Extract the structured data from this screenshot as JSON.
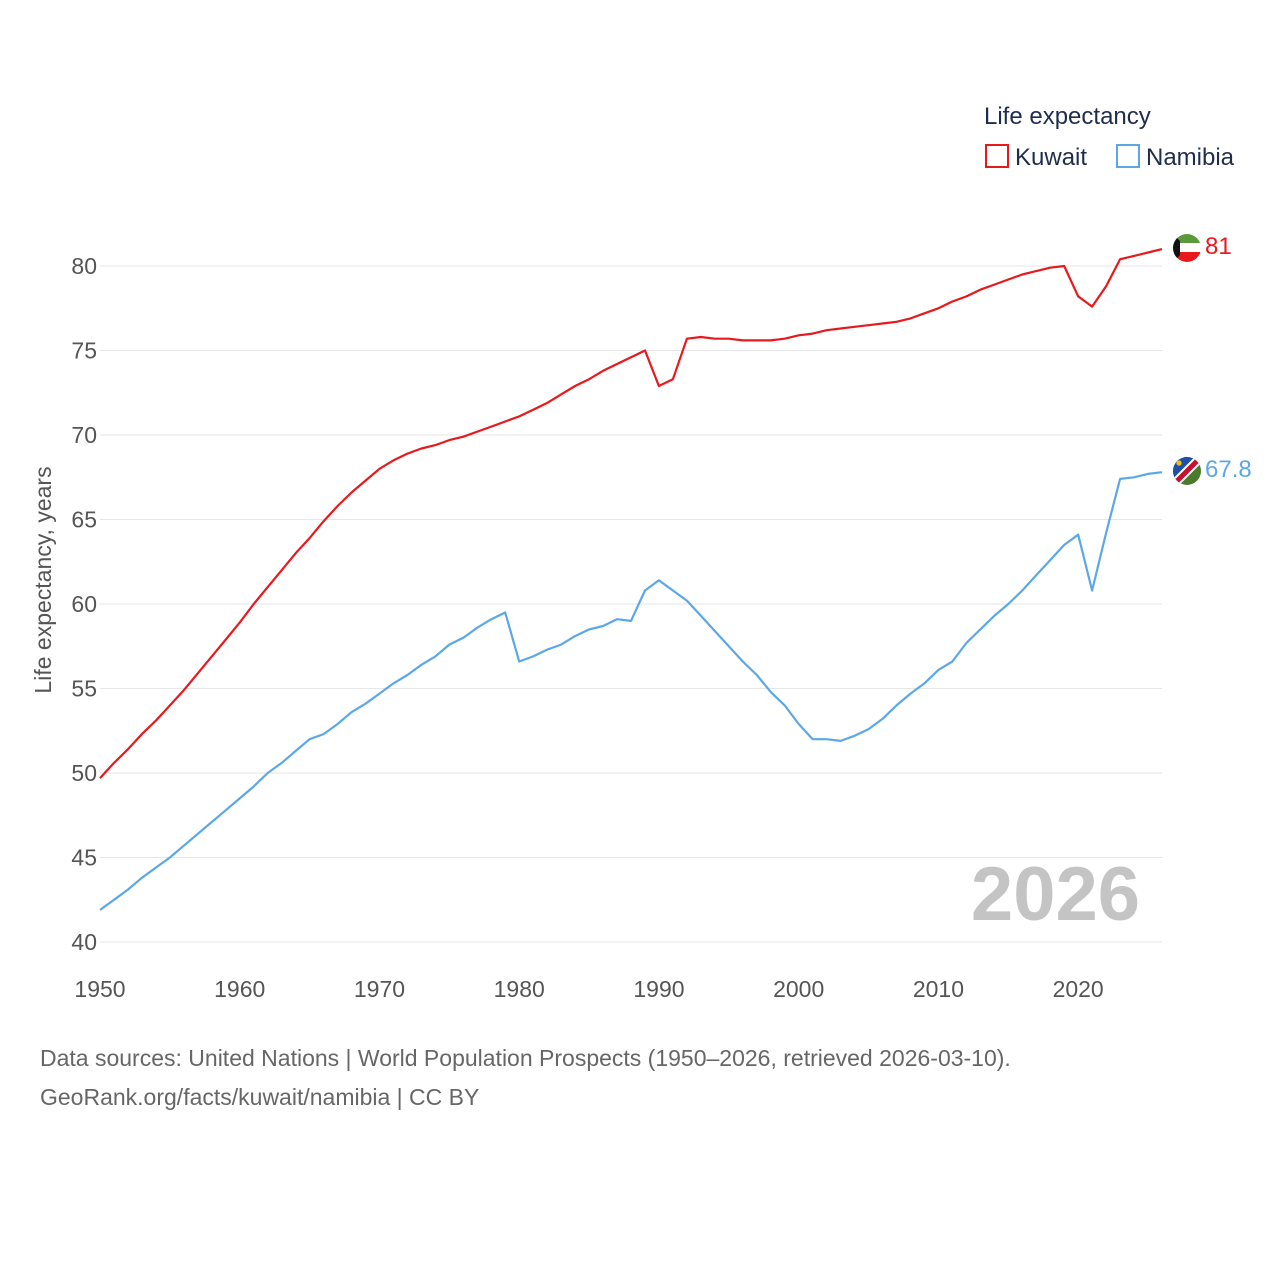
{
  "chart_data": {
    "type": "line",
    "title": "",
    "xlabel": "",
    "ylabel": "Life expectancy, years",
    "xlim": [
      1950,
      2026
    ],
    "ylim": [
      40,
      83
    ],
    "yticks": [
      40,
      45,
      50,
      55,
      60,
      65,
      70,
      75,
      80
    ],
    "xticks": [
      1950,
      1960,
      1970,
      1980,
      1990,
      2000,
      2010,
      2020
    ],
    "legend_title": "Life expectancy",
    "legend_position": "top-right",
    "current_year": "2026",
    "x": [
      1950,
      1951,
      1952,
      1953,
      1954,
      1955,
      1956,
      1957,
      1958,
      1959,
      1960,
      1961,
      1962,
      1963,
      1964,
      1965,
      1966,
      1967,
      1968,
      1969,
      1970,
      1971,
      1972,
      1973,
      1974,
      1975,
      1976,
      1977,
      1978,
      1979,
      1980,
      1981,
      1982,
      1983,
      1984,
      1985,
      1986,
      1987,
      1988,
      1989,
      1990,
      1991,
      1992,
      1993,
      1994,
      1995,
      1996,
      1997,
      1998,
      1999,
      2000,
      2001,
      2002,
      2003,
      2004,
      2005,
      2006,
      2007,
      2008,
      2009,
      2010,
      2011,
      2012,
      2013,
      2014,
      2015,
      2016,
      2017,
      2018,
      2019,
      2020,
      2021,
      2022,
      2023,
      2024,
      2025,
      2026
    ],
    "series": [
      {
        "name": "Kuwait",
        "color": "#e8191c",
        "end_label": "81",
        "flag": "kuwait-flag",
        "values": [
          49.7,
          50.6,
          51.4,
          52.3,
          53.1,
          54.0,
          54.9,
          55.9,
          56.9,
          57.9,
          58.9,
          60.0,
          61.0,
          62.0,
          63.0,
          63.9,
          64.9,
          65.8,
          66.6,
          67.3,
          68.0,
          68.5,
          68.9,
          69.2,
          69.4,
          69.7,
          69.9,
          70.2,
          70.5,
          70.8,
          71.1,
          71.5,
          71.9,
          72.4,
          72.9,
          73.3,
          73.8,
          74.2,
          74.6,
          75.0,
          72.9,
          73.3,
          75.7,
          75.8,
          75.7,
          75.7,
          75.6,
          75.6,
          75.6,
          75.7,
          75.9,
          76.0,
          76.2,
          76.3,
          76.4,
          76.5,
          76.6,
          76.7,
          76.9,
          77.2,
          77.5,
          77.9,
          78.2,
          78.6,
          78.9,
          79.2,
          79.5,
          79.7,
          79.9,
          80.0,
          78.2,
          77.6,
          78.8,
          80.4,
          80.6,
          80.8,
          81.0
        ]
      },
      {
        "name": "Namibia",
        "color": "#5ca7e8",
        "end_label": "67.8",
        "flag": "namibia-flag",
        "values": [
          41.9,
          42.5,
          43.1,
          43.8,
          44.4,
          45.0,
          45.7,
          46.4,
          47.1,
          47.8,
          48.5,
          49.2,
          50.0,
          50.6,
          51.3,
          52.0,
          52.3,
          52.9,
          53.6,
          54.1,
          54.7,
          55.3,
          55.8,
          56.4,
          56.9,
          57.6,
          58.0,
          58.6,
          59.1,
          59.5,
          56.6,
          56.9,
          57.3,
          57.6,
          58.1,
          58.5,
          58.7,
          59.1,
          59.0,
          60.8,
          61.4,
          60.8,
          60.2,
          59.3,
          58.4,
          57.5,
          56.6,
          55.8,
          54.8,
          54.0,
          52.9,
          52.0,
          52.0,
          51.9,
          52.2,
          52.6,
          53.2,
          54.0,
          54.7,
          55.3,
          56.1,
          56.6,
          57.7,
          58.5,
          59.3,
          60.0,
          60.8,
          61.7,
          62.6,
          63.5,
          64.1,
          60.8,
          64.2,
          67.4,
          67.5,
          67.7,
          67.8
        ]
      }
    ]
  },
  "footer": {
    "line1": "Data sources: United Nations | World Population Prospects (1950–2026, retrieved 2026-03-10).",
    "line2": "GeoRank.org/facts/kuwait/namibia | CC BY"
  }
}
